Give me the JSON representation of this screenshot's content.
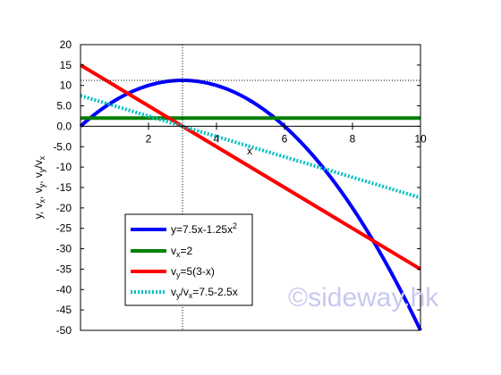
{
  "chart_data": {
    "type": "line",
    "x_axis": {
      "label": "x",
      "range": [
        0,
        10
      ],
      "ticks": [
        {
          "value": 2,
          "label": "2"
        },
        {
          "value": 4,
          "label": "4"
        },
        {
          "value": 6,
          "label": "6"
        },
        {
          "value": 8,
          "label": "8"
        },
        {
          "value": 10,
          "label": "10"
        }
      ]
    },
    "y_axis": {
      "label": "y, vx, vy, vy/vx",
      "range": [
        -50,
        20
      ],
      "ticks": [
        {
          "value": 20,
          "label": "20"
        },
        {
          "value": 15,
          "label": "15"
        },
        {
          "value": 10,
          "label": "10"
        },
        {
          "value": 5,
          "label": "5.0"
        },
        {
          "value": 0,
          "label": "0.0"
        },
        {
          "value": -5,
          "label": "-5.0"
        },
        {
          "value": -10,
          "label": "-10"
        },
        {
          "value": -15,
          "label": "-15"
        },
        {
          "value": -20,
          "label": "-20"
        },
        {
          "value": -25,
          "label": "-25"
        },
        {
          "value": -30,
          "label": "-30"
        },
        {
          "value": -35,
          "label": "-35"
        },
        {
          "value": -40,
          "label": "-40"
        },
        {
          "value": -45,
          "label": "-45"
        },
        {
          "value": -50,
          "label": "-50"
        }
      ]
    },
    "grid": false,
    "legend_position": "bottom-left",
    "reference_lines": [
      {
        "orientation": "vertical",
        "x": 3,
        "style": "dotted"
      },
      {
        "orientation": "horizontal",
        "y": 11.25,
        "style": "dotted"
      }
    ],
    "series": [
      {
        "name": "y=7.5x-1.25x2",
        "color": "#0000ff",
        "style": "solid",
        "x": [
          0,
          0.5,
          1,
          1.5,
          2,
          2.5,
          3,
          3.5,
          4,
          4.5,
          5,
          5.5,
          6,
          6.5,
          7,
          7.5,
          8,
          8.5,
          9,
          9.5,
          10
        ],
        "y": [
          0,
          3.4375,
          6.25,
          8.4375,
          10,
          10.9375,
          11.25,
          10.9375,
          10,
          8.4375,
          6.25,
          3.4375,
          0,
          -4.0625,
          -8.75,
          -14.0625,
          -20,
          -26.5625,
          -33.75,
          -41.5625,
          -50
        ]
      },
      {
        "name": "vx=2",
        "color": "#008000",
        "style": "solid",
        "x": [
          0,
          10
        ],
        "y": [
          2,
          2
        ]
      },
      {
        "name": "vy=5(3-x)",
        "color": "#ff0000",
        "style": "solid",
        "x": [
          0,
          10
        ],
        "y": [
          15,
          -35
        ]
      },
      {
        "name": "vy/vx=7.5-2.5x",
        "color": "#00c0c0",
        "style": "dotted",
        "x": [
          0,
          10
        ],
        "y": [
          7.5,
          -17.5
        ]
      }
    ],
    "legend_items": [
      {
        "base": "y=7.5x-1.25x",
        "sub": "",
        "mid": "",
        "sub2": "",
        "sup": "2",
        "tail": ""
      },
      {
        "base": "v",
        "sub": "x",
        "mid": "=2",
        "sub2": "",
        "sup": "",
        "tail": ""
      },
      {
        "base": "v",
        "sub": "y",
        "mid": "=5(3-x)",
        "sub2": "",
        "sup": "",
        "tail": ""
      },
      {
        "base": "v",
        "sub": "y",
        "mid": "/v",
        "sub2": "x",
        "sup": "",
        "tail": "=7.5-2.5x"
      }
    ],
    "y_title_parts": {
      "p1": "y, v",
      "s1": "x",
      "p2": ", v",
      "s2": "y",
      "p3": ", v",
      "s3": "y",
      "p4": "/v",
      "s4": "x"
    }
  },
  "watermark": "©sideway.hk"
}
